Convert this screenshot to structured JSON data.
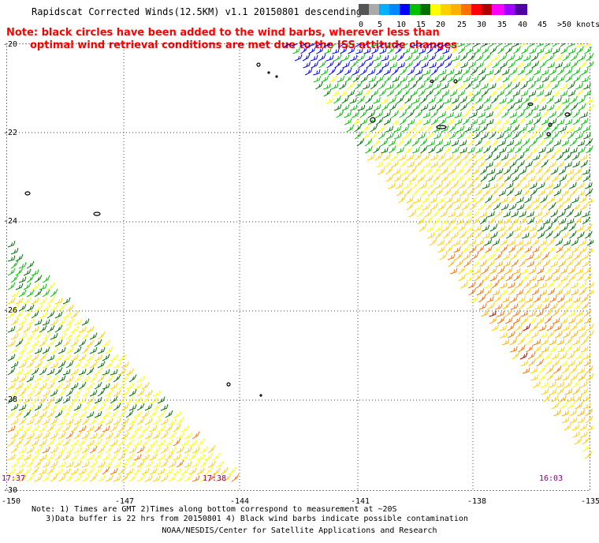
{
  "title": "Rapidscat Corrected Winds(12.5KM) v1.1 20150801 descending",
  "note": {
    "line1": "Note: black circles have been added to the wind barbs, wherever less than",
    "line2": "optimal wind retrieval conditions are met due to the ISS attitude changes"
  },
  "legend": {
    "labels": [
      "0",
      "5",
      "10",
      "15",
      "20",
      "25",
      "30",
      "35",
      "40",
      "45",
      ">50 knots"
    ],
    "colors": [
      "#555555",
      "#aaaaaa",
      "#00b0ff",
      "#0000ff",
      "#00c000",
      "#007000",
      "#ffff00",
      "#ffb000",
      "#ff7000",
      "#ff0000",
      "#b00000",
      "#800000",
      "#6a3800",
      "#ff00ff",
      "#a000ff",
      "#5000a0"
    ]
  },
  "axes": {
    "lat_labels": [
      "-20",
      "-22",
      "-24",
      "-26",
      "-28",
      "-30"
    ],
    "lon_labels": [
      "-150",
      "-147",
      "-144",
      "-141",
      "-138",
      "-135"
    ]
  },
  "time_labels": [
    "17:37",
    "17:38",
    "16:03"
  ],
  "footer": {
    "line1": "Note: 1) Times are GMT 2)Times along bottom correspond to measurement at ~20S",
    "line2": "3)Data buffer is 22 hrs from 20150801 4) Black wind barbs indicate possible contamination"
  },
  "credit": "NOAA/NESDIS/Center for Satellite Applications and Research"
}
